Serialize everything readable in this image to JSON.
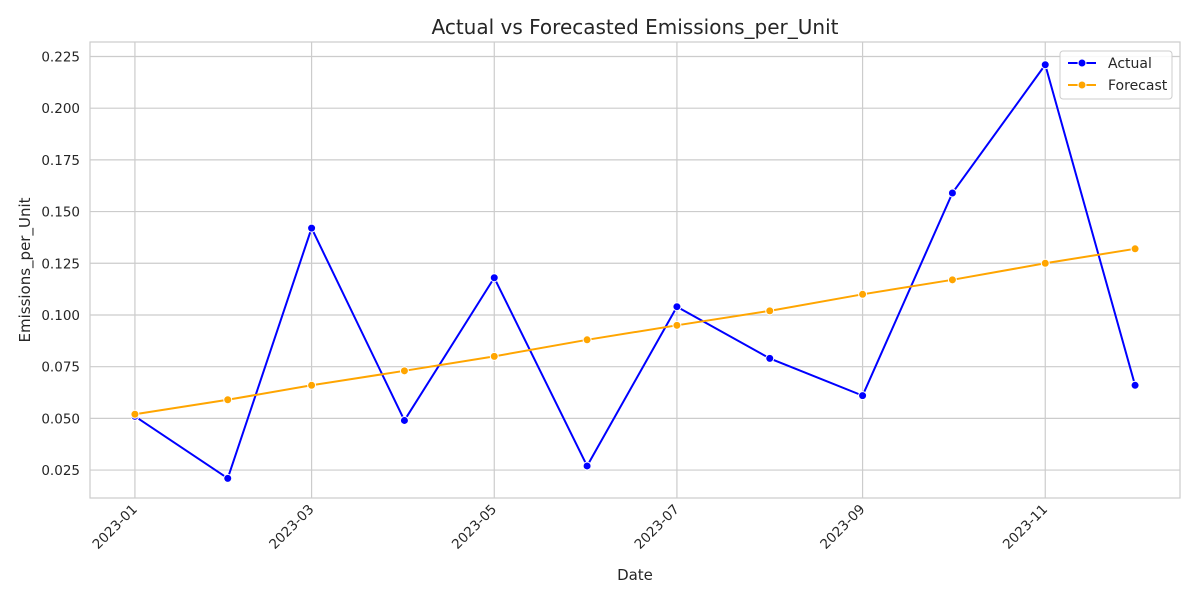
{
  "chart_data": {
    "type": "line",
    "title": "Actual vs Forecasted Emissions_per_Unit",
    "xlabel": "Date",
    "ylabel": "Emissions_per_Unit",
    "x": [
      "2023-01-01",
      "2023-02-01",
      "2023-03-01",
      "2023-04-01",
      "2023-05-01",
      "2023-06-01",
      "2023-07-01",
      "2023-08-01",
      "2023-09-01",
      "2023-10-01",
      "2023-11-01",
      "2023-12-01"
    ],
    "x_ticks": [
      "2023-01",
      "2023-03",
      "2023-05",
      "2023-07",
      "2023-09",
      "2023-11"
    ],
    "y_ticks": [
      "0.025",
      "0.050",
      "0.075",
      "0.100",
      "0.125",
      "0.150",
      "0.175",
      "0.200",
      "0.225"
    ],
    "ylim": [
      0.0115,
      0.232
    ],
    "xlim": [
      "2022-12-17",
      "2023-12-16"
    ],
    "grid": true,
    "legend_position": "top-right",
    "series": [
      {
        "name": "Actual",
        "color": "#0000ff",
        "values": [
          0.051,
          0.021,
          0.142,
          0.049,
          0.118,
          0.027,
          0.104,
          0.079,
          0.061,
          0.159,
          0.221,
          0.066
        ]
      },
      {
        "name": "Forecast",
        "color": "#ffa500",
        "values": [
          0.052,
          0.059,
          0.066,
          0.073,
          0.08,
          0.088,
          0.095,
          0.102,
          0.11,
          0.117,
          0.125,
          0.132
        ]
      }
    ]
  }
}
